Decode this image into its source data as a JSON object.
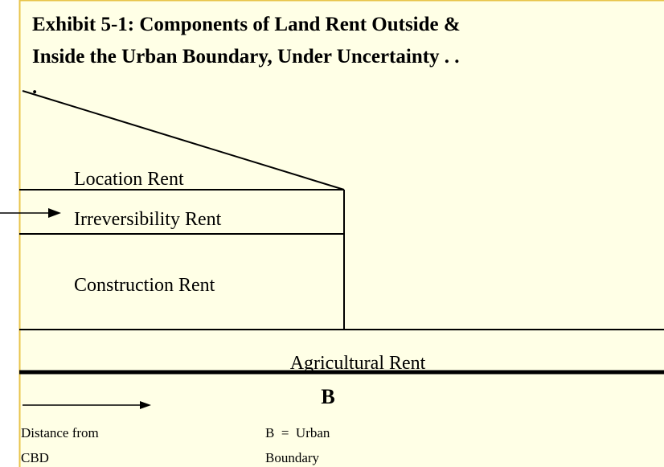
{
  "title": {
    "line1": "Exhibit 5-1: Components of Land Rent Outside &",
    "line2": "Inside the Urban Boundary, Under Uncertainty . .",
    "line3": "."
  },
  "labels": {
    "location": "Location Rent",
    "irreversibility": "Irreversibility Rent",
    "construction": "Construction Rent",
    "agricultural": "Agricultural Rent",
    "boundary_mark": "B"
  },
  "footer": {
    "distance_line1": "Distance from",
    "distance_line2": "CBD",
    "legend_line1": "B  =  Urban",
    "legend_line2": "Boundary"
  }
}
